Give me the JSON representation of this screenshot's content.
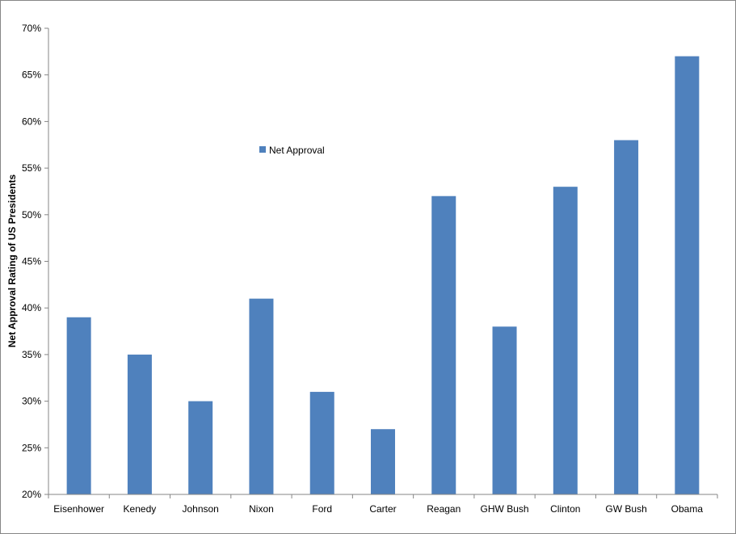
{
  "chart_data": {
    "type": "bar",
    "title": "",
    "xlabel": "",
    "ylabel": "Net Approval Rating of US Presidents",
    "ylim": [
      20,
      70
    ],
    "y_ticks": [
      "20%",
      "25%",
      "30%",
      "35%",
      "40%",
      "45%",
      "50%",
      "55%",
      "60%",
      "65%",
      "70%"
    ],
    "y_tick_values": [
      20,
      25,
      30,
      35,
      40,
      45,
      50,
      55,
      60,
      65,
      70
    ],
    "categories": [
      "Eisenhower",
      "Kenedy",
      "Johnson",
      "Nixon",
      "Ford",
      "Carter",
      "Reagan",
      "GHW Bush",
      "Clinton",
      "GW Bush",
      "Obama"
    ],
    "series": [
      {
        "name": "Net Approval",
        "values": [
          39,
          35,
          30,
          41,
          31,
          27,
          52,
          38,
          53,
          58,
          67
        ],
        "color": "#4F81BD"
      }
    ],
    "grid": false,
    "legend_position": "upper-middle"
  }
}
